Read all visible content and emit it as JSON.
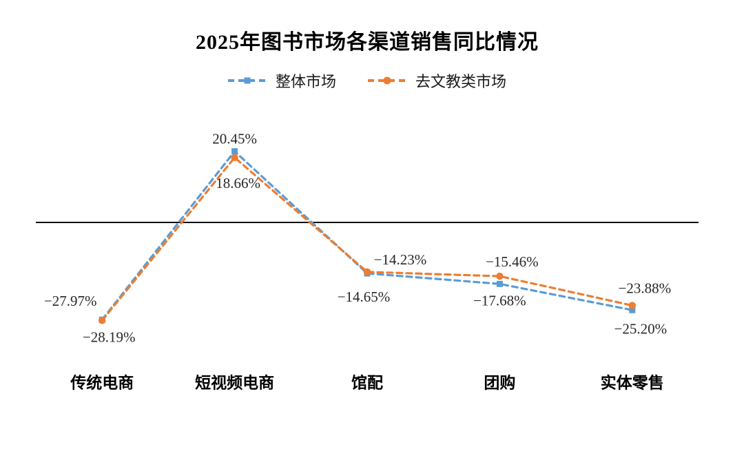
{
  "chart_data": {
    "type": "line",
    "title": "2025年图书市场各渠道销售同比情况",
    "categories": [
      "传统电商",
      "短视频电商",
      "馆配",
      "团购",
      "实体零售"
    ],
    "series": [
      {
        "name": "整体市场",
        "color": "#5B9BD5",
        "marker": "square",
        "line_style": "dashed",
        "values": [
          -27.97,
          20.45,
          -14.65,
          -17.68,
          -25.2
        ],
        "labels": [
          "−27.97%",
          "20.45%",
          "−14.65%",
          "−17.68%",
          "−25.20%"
        ]
      },
      {
        "name": "去文教类市场",
        "color": "#ED7D31",
        "marker": "circle",
        "line_style": "dashed",
        "values": [
          -28.19,
          18.66,
          -14.23,
          -15.46,
          -23.88
        ],
        "labels": [
          "−28.19%",
          "18.66%",
          "−14.23%",
          "−15.46%",
          "−23.88%"
        ]
      }
    ],
    "xlabel": "",
    "ylabel": "",
    "ylim": [
      -30,
      25
    ],
    "zero_line": true,
    "zero_line_color": "#000000",
    "grid": false,
    "legend_position": "top",
    "data_label_color": "#262626"
  }
}
